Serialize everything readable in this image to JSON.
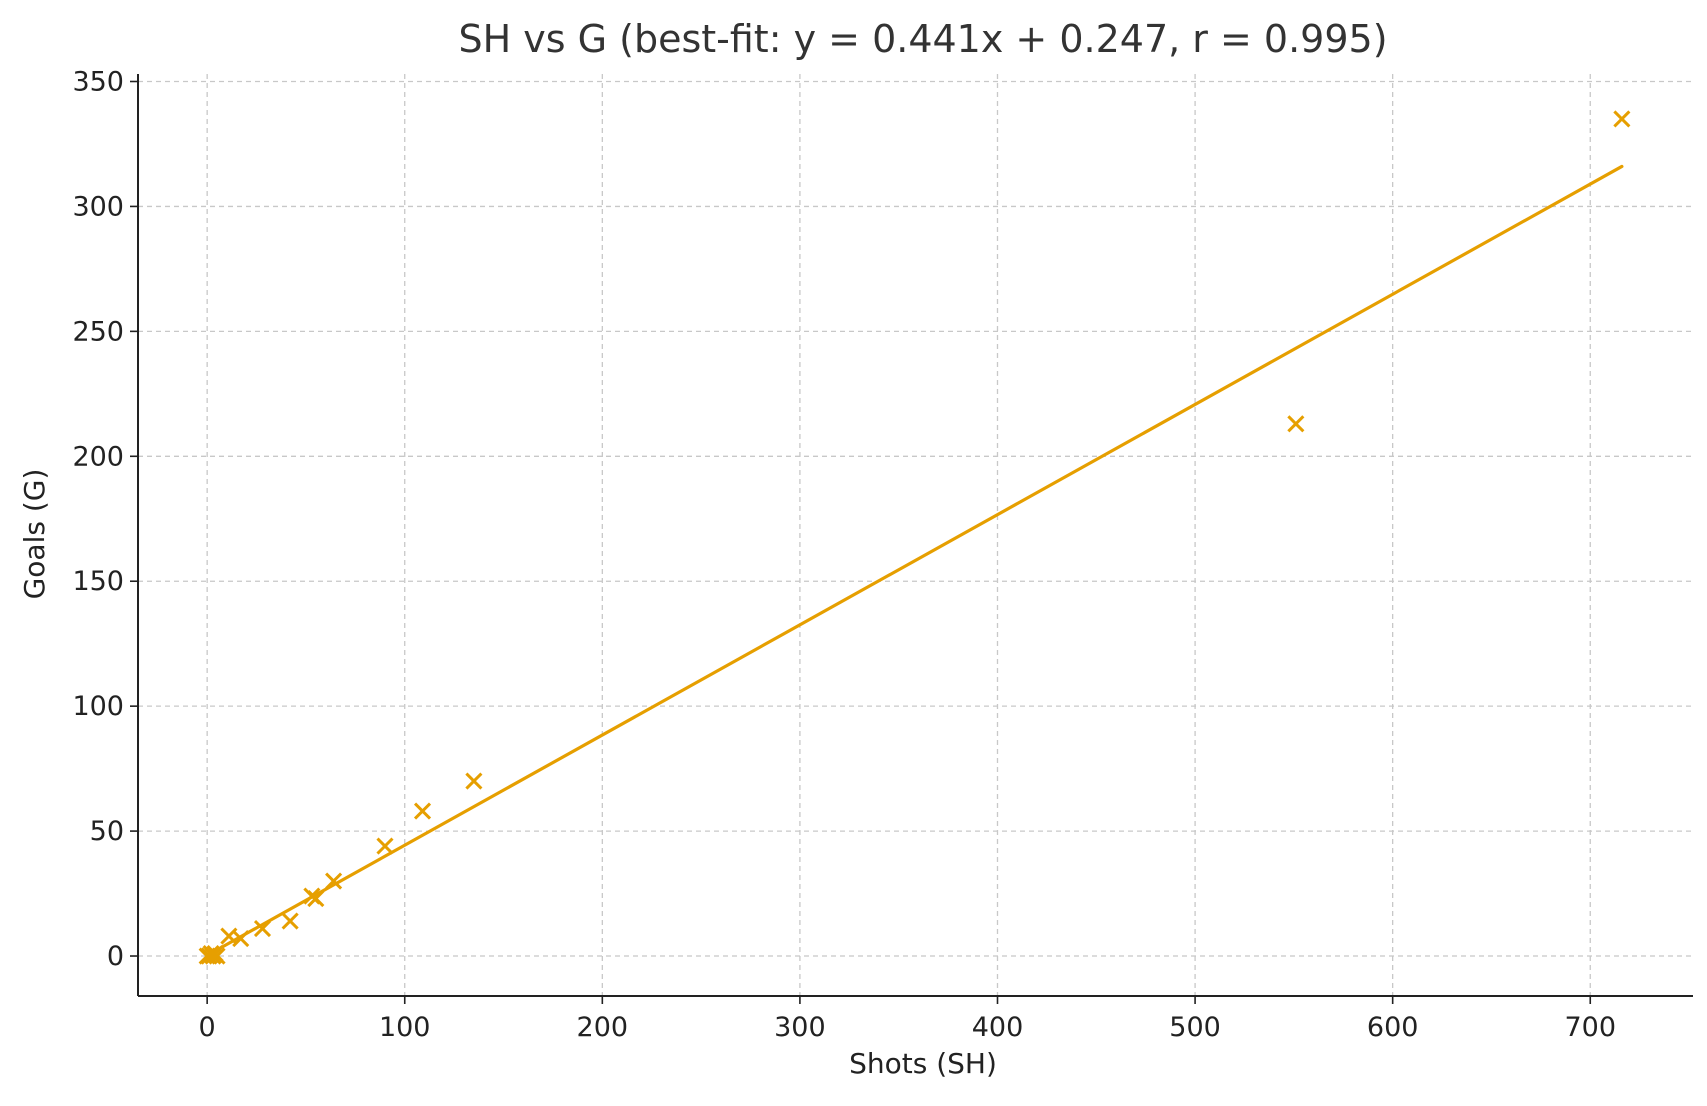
{
  "chart_data": {
    "type": "scatter",
    "title": "SH vs G (best-fit: y = 0.441x + 0.247, r = 0.995)",
    "xlabel": "Shots (SH)",
    "ylabel": "Goals (G)",
    "xlim": [
      -35,
      752
    ],
    "ylim": [
      -16,
      353
    ],
    "xticks": [
      0,
      100,
      200,
      300,
      400,
      500,
      600,
      700
    ],
    "yticks": [
      0,
      50,
      100,
      150,
      200,
      250,
      300,
      350
    ],
    "grid": true,
    "marker": "x",
    "color": "#E69F00",
    "points": [
      {
        "x": 0,
        "y": 0
      },
      {
        "x": 1,
        "y": 0
      },
      {
        "x": 2,
        "y": 1
      },
      {
        "x": 3,
        "y": 0
      },
      {
        "x": 4,
        "y": 1
      },
      {
        "x": 5,
        "y": 0
      },
      {
        "x": 11,
        "y": 8
      },
      {
        "x": 17,
        "y": 7
      },
      {
        "x": 28,
        "y": 11
      },
      {
        "x": 42,
        "y": 14
      },
      {
        "x": 53,
        "y": 24
      },
      {
        "x": 55,
        "y": 23
      },
      {
        "x": 64,
        "y": 30
      },
      {
        "x": 90,
        "y": 44
      },
      {
        "x": 109,
        "y": 58
      },
      {
        "x": 135,
        "y": 70
      },
      {
        "x": 551,
        "y": 213
      },
      {
        "x": 716,
        "y": 335
      }
    ],
    "fit_line": {
      "slope": 0.441,
      "intercept": 0.247,
      "x_start": 0,
      "x_end": 716
    }
  }
}
